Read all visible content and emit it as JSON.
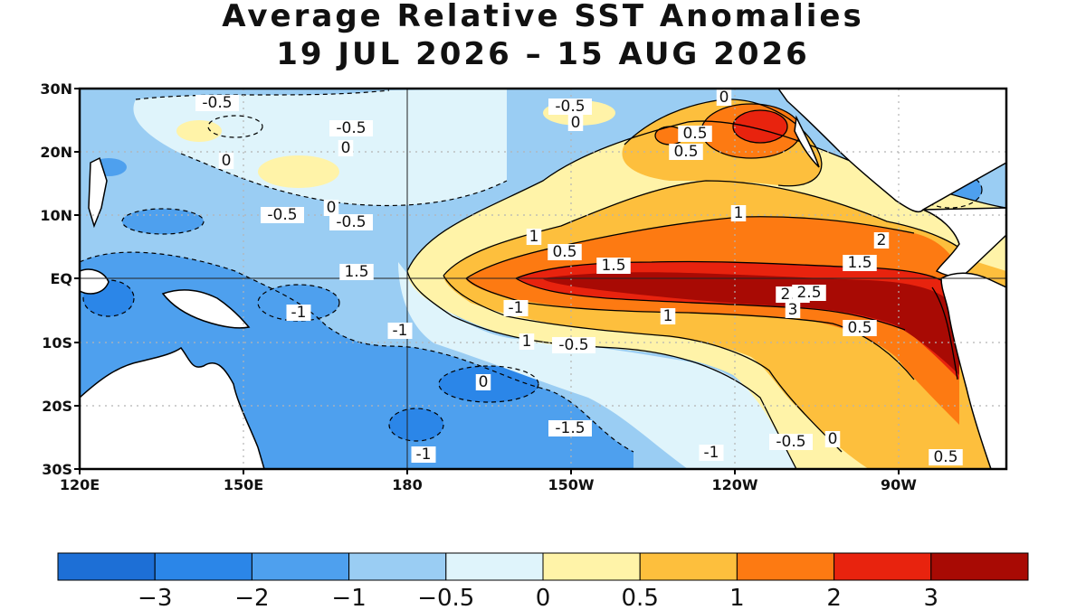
{
  "header": {
    "title": "Average Relative SST Anomalies",
    "period": "19 JUL 2026 – 15 AUG 2026"
  },
  "map": {
    "region": "Tropical Pacific",
    "lon_labels": [
      "120E",
      "150E",
      "180",
      "150W",
      "120W",
      "90W"
    ],
    "lat_labels": [
      "30N",
      "20N",
      "10N",
      "EQ",
      "10S",
      "20S",
      "30S"
    ],
    "contour_labels": [
      "-0.5",
      "-0.5",
      "0",
      "-0.5",
      "0",
      "0",
      "-0.5",
      "0",
      "-0.5",
      "0",
      "1",
      "0.5",
      "0.5",
      "1",
      "0.5",
      "1.5",
      "2",
      "1.5",
      "2.5",
      "2.5",
      "3",
      "1.5",
      "-1",
      "-1",
      "-1",
      "1",
      "0.5",
      "1",
      "-0.5",
      "0",
      "-1.5",
      "-1",
      "-1",
      "-0.5",
      "0",
      "0.5",
      "0.5"
    ],
    "colors": {
      "land": "#ffffff",
      "grid": "#b4b4b4",
      "contour": "#000000"
    }
  },
  "colorbar": {
    "tick_labels": [
      "−3",
      "−2",
      "−1",
      "−0.5",
      "0",
      "0.5",
      "1",
      "2",
      "3"
    ],
    "colors": [
      "#1d6fd6",
      "#2b86e8",
      "#4ea0ee",
      "#9acdf3",
      "#dff4fb",
      "#fff3a8",
      "#fdbf3d",
      "#fd7a12",
      "#e8230e",
      "#a80a04"
    ]
  }
}
